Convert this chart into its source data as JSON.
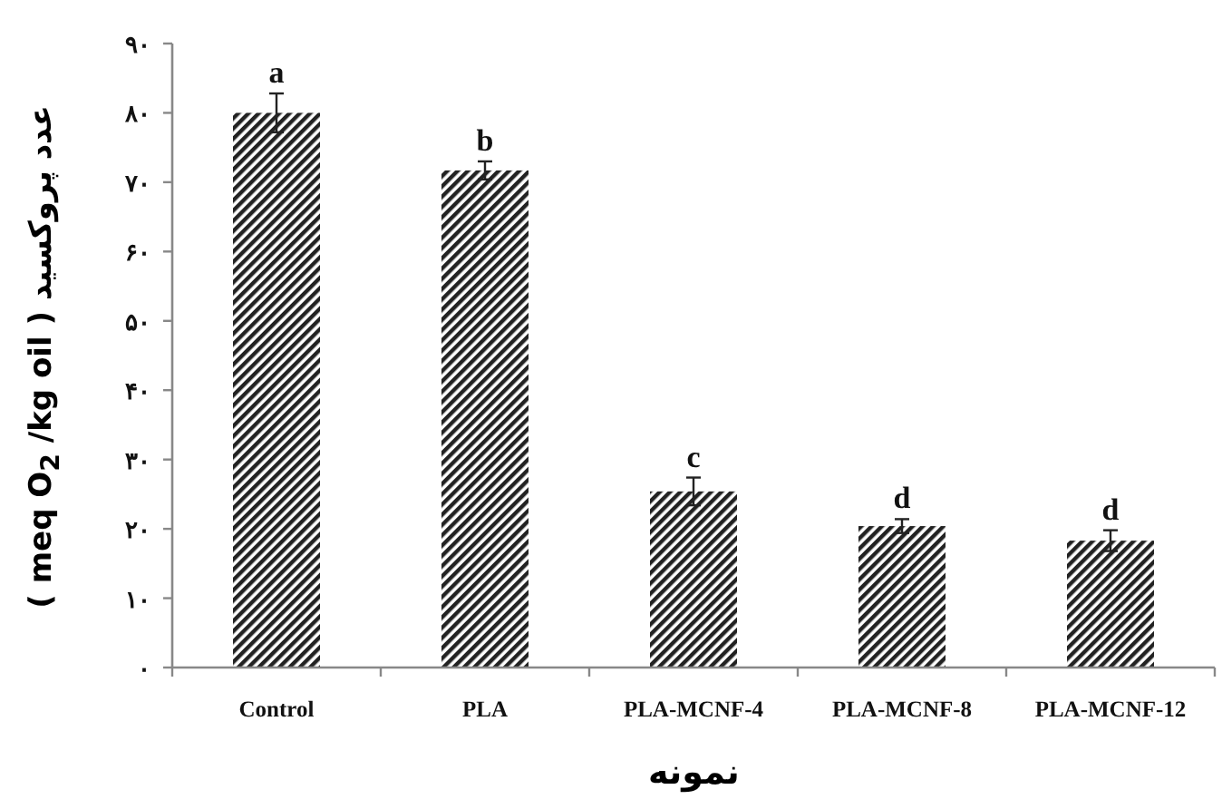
{
  "chart_data": {
    "type": "bar",
    "xlabel": "نمونه",
    "ylabel": "عدد پروکسید ( meq O$_{2}$ /kg oil )",
    "categories": [
      "Control",
      "PLA",
      "PLA-MCNF-4",
      "PLA-MCNF-8",
      "PLA-MCNF-12"
    ],
    "values": [
      80,
      71.7,
      25.4,
      20.4,
      18.3
    ],
    "errors": [
      2.8,
      1.3,
      2,
      1,
      1.5
    ],
    "color": "#222222",
    "ylim": [
      0,
      90
    ],
    "yticks": [
      {
        "value": 0,
        "label": "۰"
      },
      {
        "value": 10,
        "label": "۱۰"
      },
      {
        "value": 20,
        "label": "۲۰"
      },
      {
        "value": 30,
        "label": "۳۰"
      },
      {
        "value": 40,
        "label": "۴۰"
      },
      {
        "value": 50,
        "label": "۵۰"
      },
      {
        "value": 60,
        "label": "۶۰"
      },
      {
        "value": 70,
        "label": "۷۰"
      },
      {
        "value": 80,
        "label": "۸۰"
      },
      {
        "value": 90,
        "label": "۹۰"
      }
    ],
    "annotations": [
      {
        "text": "a",
        "x": "Control",
        "y": 82.8
      },
      {
        "text": "b",
        "x": "PLA",
        "y": 73
      },
      {
        "text": "c",
        "x": "PLA-MCNF-4",
        "y": 27.4
      },
      {
        "text": "d",
        "x": "PLA-MCNF-8",
        "y": 21.4
      },
      {
        "text": "d",
        "x": "PLA-MCNF-12",
        "y": 19.8
      }
    ]
  }
}
